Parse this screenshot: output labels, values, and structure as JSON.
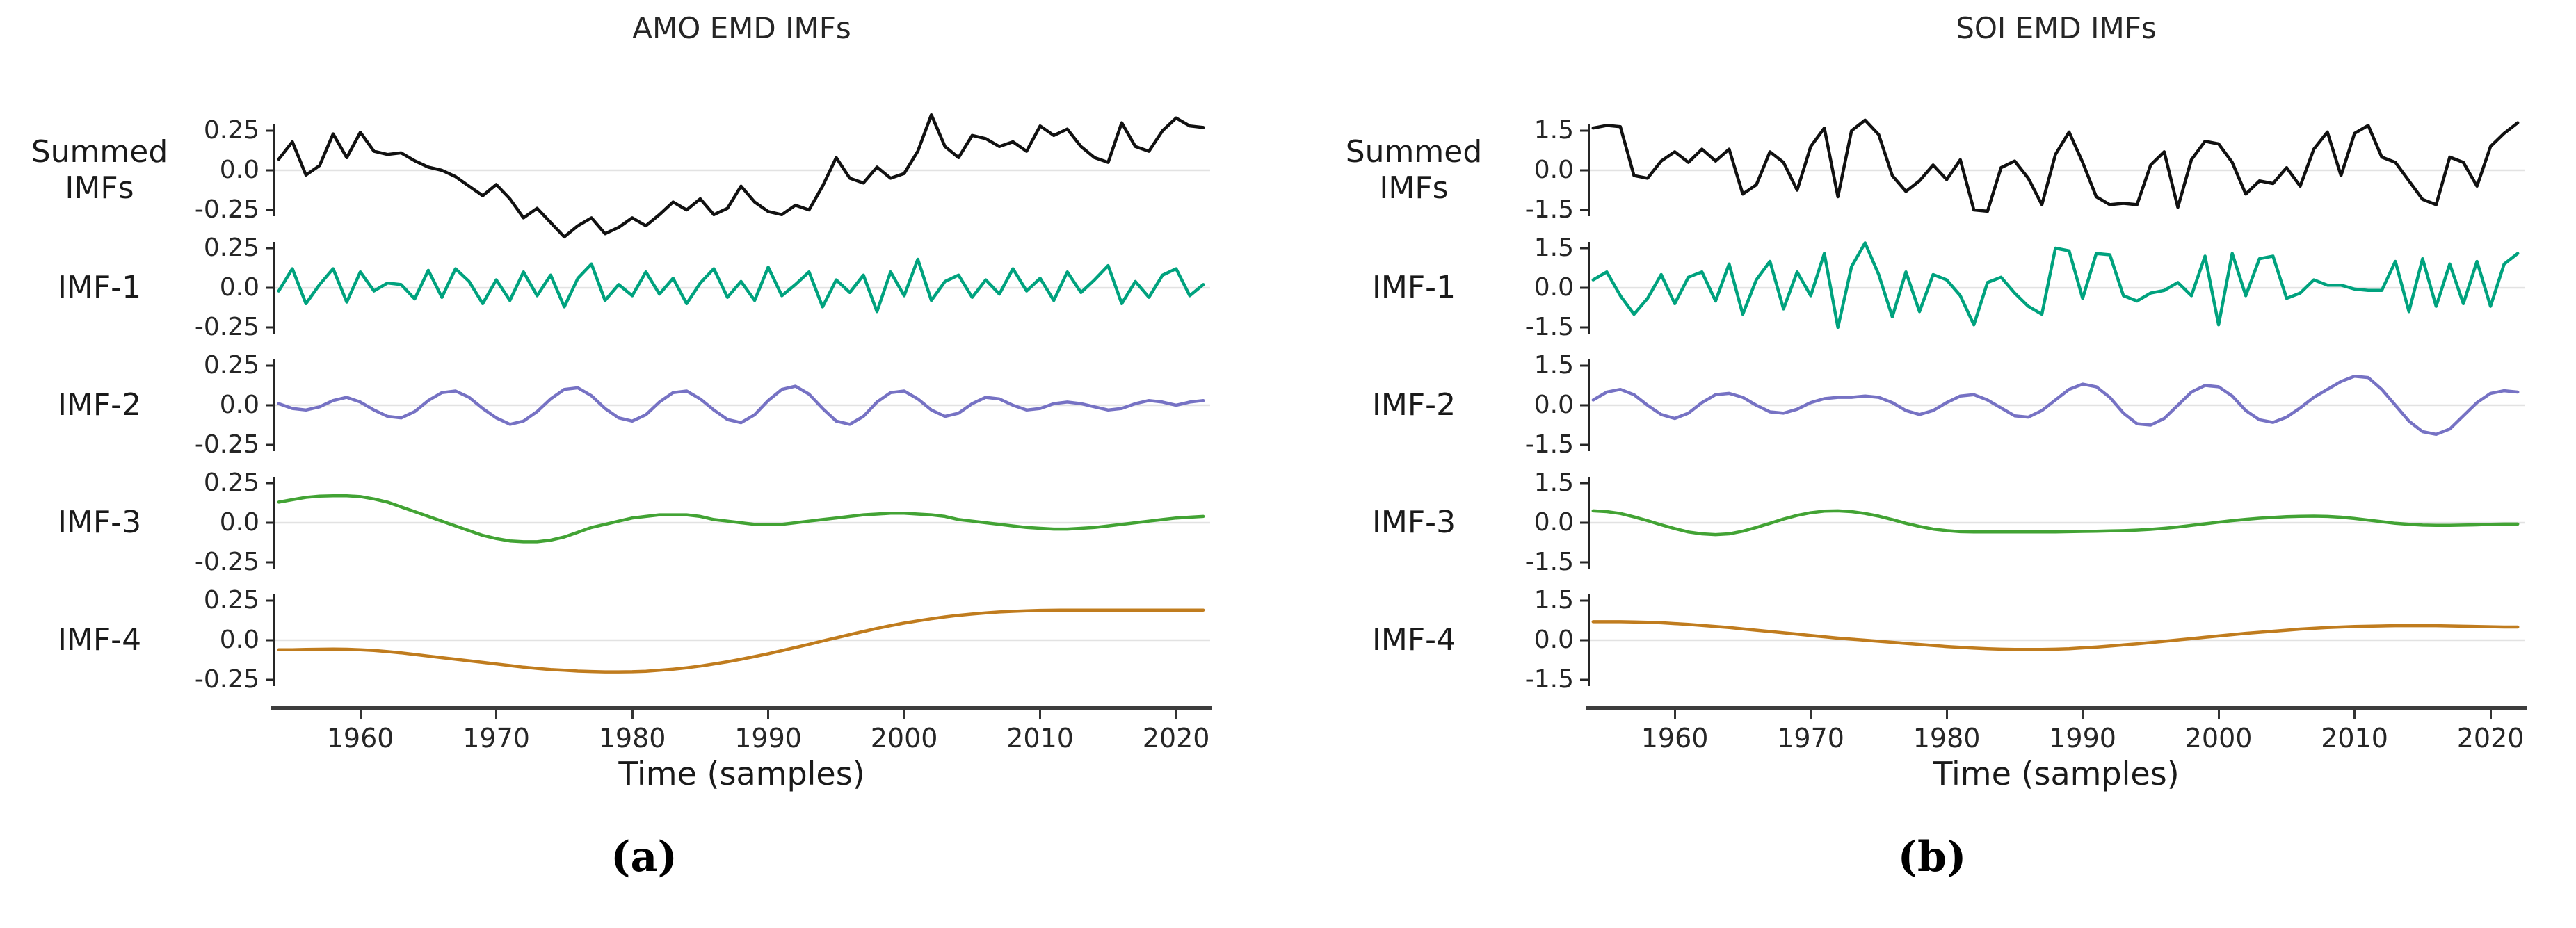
{
  "colors": {
    "background": "#ffffff",
    "grid": "#e2e2e2",
    "axis_spine": "#262626",
    "x_axis_bar": "#3d3d3d",
    "text": "#1a1a1a"
  },
  "chart_data": [
    {
      "type": "line",
      "title": "AMO EMD IMFs",
      "panel_label": "(a)",
      "xlabel": "Time (samples)",
      "ylabel": "",
      "legend": "none",
      "grid": "zero-line only",
      "x_start": 1954,
      "x_step": 1,
      "xlim": [
        1953.6,
        2022.5
      ],
      "x_ticks": [
        1960,
        1970,
        1980,
        1990,
        2000,
        2010,
        2020
      ],
      "x_tick_labels": [
        "1960",
        "1970",
        "1980",
        "1990",
        "2000",
        "2010",
        "2020"
      ],
      "ytick_values": [
        0.25,
        0.0,
        -0.25
      ],
      "ytick_labels": [
        "0.25",
        "0.0",
        "-0.25"
      ],
      "series": [
        {
          "name": "Summed IMFs",
          "label_lines": [
            "Summed",
            "IMFs"
          ],
          "color": "#111111",
          "values": [
            0.07,
            0.18,
            -0.03,
            0.03,
            0.23,
            0.08,
            0.24,
            0.12,
            0.1,
            0.11,
            0.06,
            0.02,
            0.0,
            -0.04,
            -0.1,
            -0.16,
            -0.09,
            -0.18,
            -0.3,
            -0.24,
            -0.33,
            -0.42,
            -0.35,
            -0.3,
            -0.4,
            -0.36,
            -0.3,
            -0.35,
            -0.28,
            -0.2,
            -0.25,
            -0.18,
            -0.28,
            -0.24,
            -0.1,
            -0.2,
            -0.26,
            -0.28,
            -0.22,
            -0.25,
            -0.1,
            0.08,
            -0.05,
            -0.08,
            0.02,
            -0.05,
            -0.02,
            0.12,
            0.35,
            0.15,
            0.08,
            0.22,
            0.2,
            0.15,
            0.18,
            0.12,
            0.28,
            0.22,
            0.26,
            0.15,
            0.08,
            0.05,
            0.3,
            0.15,
            0.12,
            0.25,
            0.33,
            0.28,
            0.27
          ]
        },
        {
          "name": "IMF-1",
          "label_lines": [
            "IMF-1"
          ],
          "color": "#00a27e",
          "values": [
            -0.02,
            0.12,
            -0.1,
            0.02,
            0.12,
            -0.09,
            0.1,
            -0.02,
            0.03,
            0.02,
            -0.07,
            0.11,
            -0.06,
            0.12,
            0.04,
            -0.1,
            0.05,
            -0.08,
            0.1,
            -0.05,
            0.08,
            -0.12,
            0.06,
            0.15,
            -0.08,
            0.02,
            -0.05,
            0.1,
            -0.04,
            0.06,
            -0.1,
            0.03,
            0.12,
            -0.06,
            0.04,
            -0.08,
            0.13,
            -0.05,
            0.02,
            0.1,
            -0.12,
            0.05,
            -0.03,
            0.08,
            -0.15,
            0.1,
            -0.05,
            0.18,
            -0.08,
            0.04,
            0.08,
            -0.06,
            0.05,
            -0.04,
            0.12,
            -0.02,
            0.06,
            -0.08,
            0.1,
            -0.03,
            0.05,
            0.14,
            -0.1,
            0.04,
            -0.06,
            0.08,
            0.12,
            -0.05,
            0.02
          ]
        },
        {
          "name": "IMF-2",
          "label_lines": [
            "IMF-2"
          ],
          "color": "#7672c4",
          "values": [
            0.01,
            -0.02,
            -0.03,
            -0.01,
            0.03,
            0.05,
            0.02,
            -0.03,
            -0.07,
            -0.08,
            -0.04,
            0.03,
            0.08,
            0.09,
            0.05,
            -0.02,
            -0.08,
            -0.12,
            -0.1,
            -0.04,
            0.04,
            0.1,
            0.11,
            0.06,
            -0.02,
            -0.08,
            -0.1,
            -0.06,
            0.02,
            0.08,
            0.09,
            0.04,
            -0.03,
            -0.09,
            -0.11,
            -0.06,
            0.03,
            0.1,
            0.12,
            0.07,
            -0.02,
            -0.1,
            -0.12,
            -0.07,
            0.02,
            0.08,
            0.09,
            0.04,
            -0.03,
            -0.07,
            -0.05,
            0.01,
            0.05,
            0.04,
            0.0,
            -0.03,
            -0.02,
            0.01,
            0.02,
            0.01,
            -0.01,
            -0.03,
            -0.02,
            0.01,
            0.03,
            0.02,
            0.0,
            0.02,
            0.03
          ]
        },
        {
          "name": "IMF-3",
          "label_lines": [
            "IMF-3"
          ],
          "color": "#42a334",
          "values": [
            0.13,
            0.145,
            0.16,
            0.168,
            0.17,
            0.17,
            0.165,
            0.15,
            0.13,
            0.1,
            0.07,
            0.04,
            0.01,
            -0.02,
            -0.05,
            -0.08,
            -0.1,
            -0.115,
            -0.12,
            -0.12,
            -0.11,
            -0.09,
            -0.06,
            -0.03,
            -0.01,
            0.01,
            0.03,
            0.04,
            0.05,
            0.05,
            0.05,
            0.04,
            0.02,
            0.01,
            0.0,
            -0.01,
            -0.01,
            -0.01,
            0.0,
            0.01,
            0.02,
            0.03,
            0.04,
            0.05,
            0.055,
            0.06,
            0.06,
            0.055,
            0.05,
            0.04,
            0.02,
            0.01,
            0.0,
            -0.01,
            -0.02,
            -0.03,
            -0.035,
            -0.04,
            -0.04,
            -0.035,
            -0.03,
            -0.02,
            -0.01,
            0.0,
            0.01,
            0.02,
            0.03,
            0.035,
            0.04
          ]
        },
        {
          "name": "IMF-4",
          "label_lines": [
            "IMF-4"
          ],
          "color": "#c07c1e",
          "values": [
            -0.06,
            -0.06,
            -0.058,
            -0.057,
            -0.056,
            -0.057,
            -0.06,
            -0.065,
            -0.072,
            -0.08,
            -0.09,
            -0.1,
            -0.11,
            -0.12,
            -0.13,
            -0.14,
            -0.15,
            -0.16,
            -0.17,
            -0.178,
            -0.185,
            -0.19,
            -0.195,
            -0.198,
            -0.2,
            -0.2,
            -0.199,
            -0.196,
            -0.19,
            -0.183,
            -0.174,
            -0.163,
            -0.15,
            -0.136,
            -0.12,
            -0.103,
            -0.085,
            -0.066,
            -0.046,
            -0.026,
            -0.005,
            0.015,
            0.035,
            0.055,
            0.074,
            0.092,
            0.108,
            0.122,
            0.135,
            0.147,
            0.157,
            0.165,
            0.172,
            0.178,
            0.182,
            0.185,
            0.188,
            0.189,
            0.19,
            0.19,
            0.19,
            0.19,
            0.19,
            0.19,
            0.19,
            0.19,
            0.19,
            0.19,
            0.19
          ]
        }
      ]
    },
    {
      "type": "line",
      "title": "SOI EMD IMFs",
      "panel_label": "(b)",
      "xlabel": "Time (samples)",
      "ylabel": "",
      "legend": "none",
      "grid": "zero-line only",
      "x_start": 1954,
      "x_step": 1,
      "xlim": [
        1953.6,
        2022.5
      ],
      "x_ticks": [
        1960,
        1970,
        1980,
        1990,
        2000,
        2010,
        2020
      ],
      "x_tick_labels": [
        "1960",
        "1970",
        "1980",
        "1990",
        "2000",
        "2010",
        "2020"
      ],
      "ytick_values": [
        1.5,
        0.0,
        -1.5
      ],
      "ytick_labels": [
        "1.5",
        "0.0",
        "-1.5"
      ],
      "series": [
        {
          "name": "Summed IMFs",
          "label_lines": [
            "Summed",
            "IMFs"
          ],
          "color": "#111111",
          "values": [
            1.6,
            1.7,
            1.65,
            -0.2,
            -0.3,
            0.35,
            0.7,
            0.3,
            0.8,
            0.35,
            0.8,
            -0.9,
            -0.55,
            0.7,
            0.3,
            -0.75,
            0.9,
            1.6,
            -1.0,
            1.5,
            1.9,
            1.35,
            -0.2,
            -0.8,
            -0.4,
            0.2,
            -0.35,
            0.4,
            -1.5,
            -1.55,
            0.1,
            0.35,
            -0.3,
            -1.3,
            0.6,
            1.45,
            0.3,
            -1.0,
            -1.3,
            -1.25,
            -1.3,
            0.2,
            0.7,
            -1.4,
            0.4,
            1.1,
            1.0,
            0.3,
            -0.9,
            -0.4,
            -0.5,
            0.1,
            -0.6,
            0.8,
            1.45,
            -0.2,
            1.4,
            1.7,
            0.5,
            0.3,
            -0.4,
            -1.1,
            -1.3,
            0.5,
            0.3,
            -0.6,
            0.9,
            1.4,
            1.8
          ]
        },
        {
          "name": "IMF-1",
          "label_lines": [
            "IMF-1"
          ],
          "color": "#00a27e",
          "values": [
            0.3,
            0.6,
            -0.3,
            -1.0,
            -0.4,
            0.5,
            -0.6,
            0.4,
            0.6,
            -0.5,
            0.9,
            -1.0,
            0.3,
            1.0,
            -0.8,
            0.6,
            -0.3,
            1.3,
            -1.5,
            0.8,
            1.7,
            0.5,
            -1.1,
            0.6,
            -0.9,
            0.5,
            0.3,
            -0.3,
            -1.4,
            0.2,
            0.4,
            -0.2,
            -0.7,
            -1.0,
            1.5,
            1.4,
            -0.4,
            1.3,
            1.25,
            -0.3,
            -0.5,
            -0.2,
            -0.1,
            0.2,
            -0.3,
            1.2,
            -1.4,
            1.3,
            -0.3,
            1.1,
            1.2,
            -0.4,
            -0.2,
            0.3,
            0.1,
            0.1,
            -0.05,
            -0.1,
            -0.1,
            1.0,
            -0.9,
            1.1,
            -0.7,
            0.9,
            -0.6,
            1.0,
            -0.7,
            0.9,
            1.3
          ]
        },
        {
          "name": "IMF-2",
          "label_lines": [
            "IMF-2"
          ],
          "color": "#7672c4",
          "values": [
            0.2,
            0.5,
            0.6,
            0.4,
            0.0,
            -0.35,
            -0.5,
            -0.3,
            0.1,
            0.4,
            0.45,
            0.3,
            0.0,
            -0.25,
            -0.3,
            -0.15,
            0.1,
            0.25,
            0.3,
            0.3,
            0.35,
            0.3,
            0.1,
            -0.2,
            -0.35,
            -0.2,
            0.1,
            0.35,
            0.4,
            0.2,
            -0.1,
            -0.4,
            -0.45,
            -0.2,
            0.2,
            0.6,
            0.8,
            0.7,
            0.3,
            -0.3,
            -0.7,
            -0.75,
            -0.5,
            0.0,
            0.5,
            0.75,
            0.7,
            0.35,
            -0.2,
            -0.55,
            -0.65,
            -0.45,
            -0.1,
            0.3,
            0.6,
            0.9,
            1.1,
            1.05,
            0.6,
            0.0,
            -0.6,
            -1.0,
            -1.1,
            -0.9,
            -0.4,
            0.1,
            0.45,
            0.55,
            0.5
          ]
        },
        {
          "name": "IMF-3",
          "label_lines": [
            "IMF-3"
          ],
          "color": "#42a334",
          "values": [
            0.45,
            0.42,
            0.35,
            0.22,
            0.08,
            -0.08,
            -0.22,
            -0.35,
            -0.42,
            -0.45,
            -0.42,
            -0.32,
            -0.18,
            -0.02,
            0.14,
            0.28,
            0.38,
            0.44,
            0.45,
            0.42,
            0.35,
            0.25,
            0.12,
            -0.02,
            -0.14,
            -0.24,
            -0.3,
            -0.34,
            -0.35,
            -0.35,
            -0.35,
            -0.35,
            -0.35,
            -0.35,
            -0.35,
            -0.34,
            -0.33,
            -0.32,
            -0.31,
            -0.3,
            -0.28,
            -0.25,
            -0.21,
            -0.16,
            -0.1,
            -0.04,
            0.02,
            0.08,
            0.13,
            0.17,
            0.2,
            0.23,
            0.245,
            0.25,
            0.24,
            0.21,
            0.16,
            0.1,
            0.04,
            -0.02,
            -0.06,
            -0.09,
            -0.1,
            -0.1,
            -0.09,
            -0.08,
            -0.06,
            -0.05,
            -0.05
          ]
        },
        {
          "name": "IMF-4",
          "label_lines": [
            "IMF-4"
          ],
          "color": "#c07c1e",
          "values": [
            0.7,
            0.7,
            0.7,
            0.69,
            0.68,
            0.66,
            0.63,
            0.6,
            0.56,
            0.52,
            0.48,
            0.43,
            0.38,
            0.33,
            0.28,
            0.23,
            0.18,
            0.13,
            0.08,
            0.04,
            0.0,
            -0.04,
            -0.08,
            -0.12,
            -0.16,
            -0.2,
            -0.24,
            -0.27,
            -0.3,
            -0.32,
            -0.34,
            -0.35,
            -0.35,
            -0.35,
            -0.34,
            -0.32,
            -0.29,
            -0.26,
            -0.22,
            -0.18,
            -0.14,
            -0.09,
            -0.04,
            0.01,
            0.06,
            0.11,
            0.16,
            0.21,
            0.26,
            0.3,
            0.34,
            0.38,
            0.42,
            0.45,
            0.48,
            0.5,
            0.52,
            0.53,
            0.54,
            0.55,
            0.55,
            0.55,
            0.55,
            0.54,
            0.53,
            0.52,
            0.51,
            0.5,
            0.5
          ]
        }
      ]
    }
  ]
}
